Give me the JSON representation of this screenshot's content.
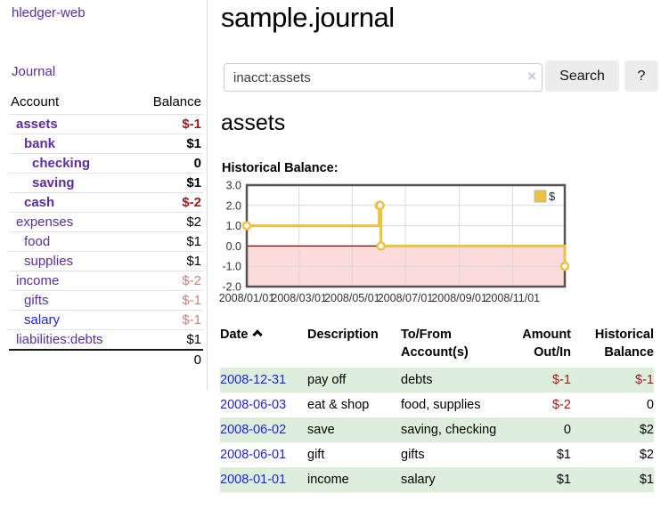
{
  "colors": {
    "purple": "#5c2d9b",
    "blue": "#2323dd",
    "negative_strong": "#9a1b1b",
    "negative_soft": "#c48382",
    "stripe_green": "#ddeedd",
    "chart_gold": "#edc240",
    "chart_pink": "#fcdbdb",
    "chart_zero_red": "#8b0000",
    "chart_grid": "#d8d8d8",
    "chart_border": "#545454",
    "divider": "#d9d9d9",
    "button_bg": "#ececec",
    "input_border": "#cccccc",
    "clear_icon": "#cfc5e4"
  },
  "sidebar": {
    "brand": "hledger-web",
    "nav_journal": "Journal",
    "accounts_header": {
      "account": "Account",
      "balance": "Balance"
    },
    "accounts": [
      {
        "name": "assets",
        "level": 1,
        "bold": true,
        "link": "purple",
        "balance": "$-1",
        "tone": "neg-strong"
      },
      {
        "name": "bank",
        "level": 2,
        "bold": true,
        "link": "purple",
        "balance": "$1",
        "tone": "normal"
      },
      {
        "name": "checking",
        "level": 3,
        "bold": true,
        "link": "purple",
        "balance": "0",
        "tone": "normal"
      },
      {
        "name": "saving",
        "level": 3,
        "bold": true,
        "link": "purple",
        "balance": "$1",
        "tone": "normal"
      },
      {
        "name": "cash",
        "level": 2,
        "bold": true,
        "link": "purple",
        "balance": "$-2",
        "tone": "neg-strong"
      },
      {
        "name": "expenses",
        "level": 1,
        "bold": false,
        "link": "purple",
        "balance": "$2",
        "tone": "normal"
      },
      {
        "name": "food",
        "level": 2,
        "bold": false,
        "link": "purple",
        "balance": "$1",
        "tone": "normal"
      },
      {
        "name": "supplies",
        "level": 2,
        "bold": false,
        "link": "purple",
        "balance": "$1",
        "tone": "normal"
      },
      {
        "name": "income",
        "level": 1,
        "bold": false,
        "link": "purple",
        "balance": "$-2",
        "tone": "neg-soft"
      },
      {
        "name": "gifts",
        "level": 2,
        "bold": false,
        "link": "purple",
        "balance": "$-1",
        "tone": "neg-soft"
      },
      {
        "name": "salary",
        "level": 2,
        "bold": false,
        "link": "blue",
        "balance": "$-1",
        "tone": "neg-soft"
      },
      {
        "name": "liabilities:debts",
        "level": 1,
        "bold": false,
        "link": "purple",
        "balance": "$1",
        "tone": "normal"
      }
    ],
    "total": "0"
  },
  "main": {
    "title": "sample.journal",
    "search": {
      "query": "inacct:assets",
      "clear_icon": "×",
      "search_label": "Search",
      "help_label": "?"
    },
    "account_heading": "assets",
    "chart_label": "Historical Balance:"
  },
  "chart_data": {
    "type": "line",
    "step": true,
    "title": "Historical Balance",
    "ylabel": "",
    "xlabel": "",
    "ylim": [
      -2,
      3
    ],
    "y_ticks": [
      3.0,
      2.0,
      1.0,
      0.0,
      -1.0,
      -2.0
    ],
    "x_domain": [
      "2008-01-01",
      "2008-12-31"
    ],
    "x_ticks": [
      "2008/01/01",
      "2008/03/01",
      "2008/05/01",
      "2008/07/01",
      "2008/09/01",
      "2008/11/01"
    ],
    "grid": true,
    "negative_region": {
      "from": 0,
      "to": -2
    },
    "legend": {
      "position": "top-right",
      "label": "$"
    },
    "series": [
      {
        "name": "$",
        "points": [
          {
            "date": "2008-01-01",
            "value": 1
          },
          {
            "date": "2008-06-01",
            "value": 2
          },
          {
            "date": "2008-06-02",
            "value": 2
          },
          {
            "date": "2008-06-03",
            "value": 0
          },
          {
            "date": "2008-12-31",
            "value": -1
          }
        ]
      }
    ]
  },
  "register": {
    "headers": [
      {
        "label": "Date",
        "sorted": "ascending"
      },
      {
        "label": "Description"
      },
      {
        "label": "To/From Account(s)"
      },
      {
        "label": "Amount Out/In"
      },
      {
        "label": "Historical Balance"
      }
    ],
    "rows": [
      {
        "date": "2008-12-31",
        "description": "pay off",
        "accounts": "debts",
        "amount": "$-1",
        "amount_negative": true,
        "balance": "$-1",
        "balance_negative": true,
        "striped": true
      },
      {
        "date": "2008-06-03",
        "description": "eat & shop",
        "accounts": "food, supplies",
        "amount": "$-2",
        "amount_negative": true,
        "balance": "0",
        "balance_negative": false,
        "striped": false
      },
      {
        "date": "2008-06-02",
        "description": "save",
        "accounts": "saving, checking",
        "amount": "0",
        "amount_negative": false,
        "balance": "$2",
        "balance_negative": false,
        "striped": true
      },
      {
        "date": "2008-06-01",
        "description": "gift",
        "accounts": "gifts",
        "amount": "$1",
        "amount_negative": false,
        "balance": "$2",
        "balance_negative": false,
        "striped": false
      },
      {
        "date": "2008-01-01",
        "description": "income",
        "accounts": "salary",
        "amount": "$1",
        "amount_negative": false,
        "balance": "$1",
        "balance_negative": false,
        "striped": true
      }
    ]
  }
}
